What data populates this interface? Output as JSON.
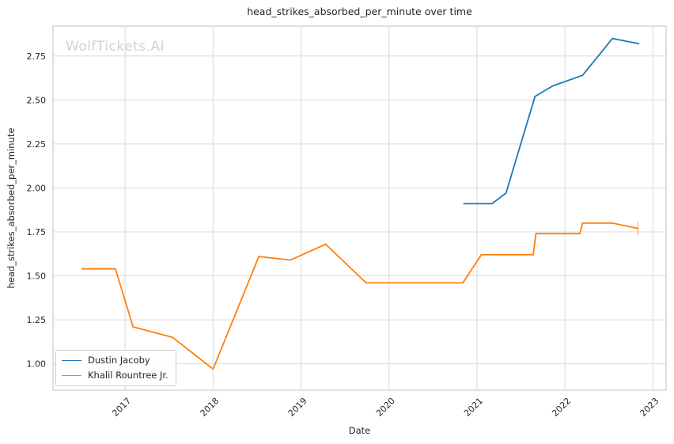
{
  "chart_data": {
    "type": "line",
    "title": "head_strikes_absorbed_per_minute over time",
    "xlabel": "Date",
    "ylabel": "head_strikes_absorbed_per_minute",
    "watermark": "WolfTickets.AI",
    "grid": true,
    "legend_position": "lower left",
    "x_ticks": [
      2017,
      2018,
      2019,
      2020,
      2021,
      2022,
      2023
    ],
    "y_ticks": [
      1.0,
      1.25,
      1.5,
      1.75,
      2.0,
      2.25,
      2.5,
      2.75
    ],
    "xlim": [
      2016.18,
      2023.15
    ],
    "ylim": [
      0.85,
      2.92
    ],
    "series": [
      {
        "name": "Dustin Jacoby",
        "color": "#1f77b4",
        "x": [
          2020.85,
          2021.17,
          2021.33,
          2021.66,
          2021.86,
          2022.2,
          2022.54,
          2022.84
        ],
        "y": [
          1.91,
          1.91,
          1.97,
          2.52,
          2.58,
          2.64,
          2.85,
          2.82
        ],
        "end_tick": false
      },
      {
        "name": "Khalil Rountree Jr.",
        "color": "#ff7f0e",
        "x": [
          2016.51,
          2016.89,
          2017.09,
          2017.54,
          2018.0,
          2018.52,
          2018.88,
          2019.28,
          2019.74,
          2020.84,
          2021.05,
          2021.64,
          2021.67,
          2022.17,
          2022.2,
          2022.54,
          2022.83
        ],
        "y": [
          1.54,
          1.54,
          1.21,
          1.15,
          0.97,
          1.61,
          1.59,
          1.68,
          1.46,
          1.46,
          1.62,
          1.62,
          1.74,
          1.74,
          1.8,
          1.8,
          1.77
        ],
        "end_tick": true
      }
    ],
    "style": {
      "grid_color": "#d9d9d9",
      "border_color": "#cacaca",
      "text_color": "#262626",
      "watermark_color": "#d2d2d2",
      "background": "#ffffff"
    }
  }
}
